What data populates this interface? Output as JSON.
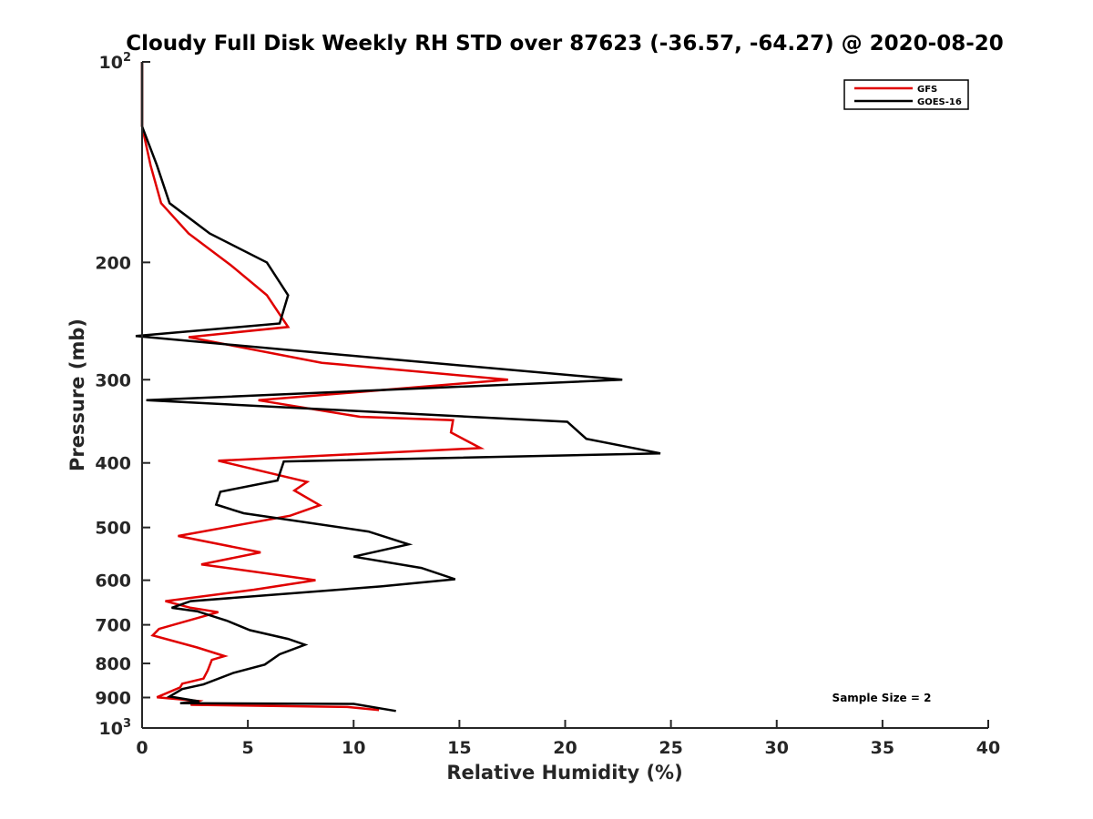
{
  "chart_data": {
    "type": "line",
    "title": "Cloudy Full Disk Weekly RH STD over 87623 (-36.57, -64.27) @ 2020-08-20",
    "xlabel": "Relative Humidity (%)",
    "ylabel": "Pressure (mb)",
    "xlim": [
      0,
      40
    ],
    "ylim": [
      100,
      1000
    ],
    "y_scale": "log",
    "y_reversed": true,
    "x_ticks": [
      "0",
      "5",
      "10",
      "15",
      "20",
      "25",
      "30",
      "35",
      "40"
    ],
    "y_ticks": [
      {
        "value": 100,
        "base": "10",
        "exp": "2"
      },
      {
        "value": 200,
        "label": "200"
      },
      {
        "value": 300,
        "label": "300"
      },
      {
        "value": 400,
        "label": "400"
      },
      {
        "value": 500,
        "label": "500"
      },
      {
        "value": 600,
        "label": "600"
      },
      {
        "value": 700,
        "label": "700"
      },
      {
        "value": 800,
        "label": "800"
      },
      {
        "value": 900,
        "label": "900"
      },
      {
        "value": 1000,
        "base": "10",
        "exp": "3"
      }
    ],
    "grid": false,
    "legend_position": "top-right",
    "series": [
      {
        "name": "GFS",
        "color": "#e00000",
        "points": [
          [
            0.0,
            100
          ],
          [
            0.0,
            125
          ],
          [
            0.4,
            143
          ],
          [
            0.9,
            163
          ],
          [
            2.2,
            181
          ],
          [
            4.2,
            202
          ],
          [
            5.9,
            224
          ],
          [
            6.9,
            250
          ],
          [
            2.2,
            259
          ],
          [
            8.5,
            283
          ],
          [
            17.3,
            300
          ],
          [
            5.5,
            322
          ],
          [
            10.3,
            341
          ],
          [
            14.7,
            345
          ],
          [
            14.6,
            360
          ],
          [
            16.0,
            380
          ],
          [
            3.6,
            397
          ],
          [
            7.8,
            427
          ],
          [
            7.2,
            440
          ],
          [
            8.4,
            463
          ],
          [
            7.0,
            480
          ],
          [
            1.7,
            515
          ],
          [
            5.6,
            545
          ],
          [
            2.8,
            568
          ],
          [
            8.2,
            600
          ],
          [
            5.3,
            620
          ],
          [
            1.1,
            645
          ],
          [
            2.3,
            660
          ],
          [
            3.6,
            670
          ],
          [
            0.8,
            710
          ],
          [
            0.5,
            726
          ],
          [
            2.6,
            757
          ],
          [
            3.9,
            780
          ],
          [
            3.3,
            790
          ],
          [
            3.1,
            820
          ],
          [
            2.9,
            843
          ],
          [
            1.9,
            858
          ],
          [
            1.8,
            869
          ],
          [
            0.7,
            899
          ],
          [
            2.7,
            911
          ],
          [
            2.3,
            923
          ],
          [
            9.7,
            930
          ],
          [
            11.2,
            940
          ]
        ]
      },
      {
        "name": "GOES-16",
        "color": "#000000",
        "points": [
          [
            0.0,
            100
          ],
          [
            0.0,
            125
          ],
          [
            0.7,
            143
          ],
          [
            1.3,
            163
          ],
          [
            3.2,
            181
          ],
          [
            5.9,
            200
          ],
          [
            6.9,
            224
          ],
          [
            6.5,
            247
          ],
          [
            -0.3,
            258
          ],
          [
            12.0,
            280
          ],
          [
            22.7,
            300
          ],
          [
            0.2,
            322
          ],
          [
            20.1,
            347
          ],
          [
            21.0,
            368
          ],
          [
            24.5,
            387
          ],
          [
            6.7,
            398
          ],
          [
            6.4,
            425
          ],
          [
            3.7,
            442
          ],
          [
            3.5,
            462
          ],
          [
            4.8,
            476
          ],
          [
            10.7,
            507
          ],
          [
            12.6,
            530
          ],
          [
            10.0,
            553
          ],
          [
            13.2,
            575
          ],
          [
            14.8,
            598
          ],
          [
            11.3,
            613
          ],
          [
            2.3,
            645
          ],
          [
            1.4,
            660
          ],
          [
            2.6,
            668
          ],
          [
            4.0,
            690
          ],
          [
            5.1,
            713
          ],
          [
            6.9,
            735
          ],
          [
            7.7,
            750
          ],
          [
            6.5,
            775
          ],
          [
            5.8,
            803
          ],
          [
            4.3,
            827
          ],
          [
            2.9,
            860
          ],
          [
            1.9,
            874
          ],
          [
            1.3,
            897
          ],
          [
            2.7,
            912
          ],
          [
            1.8,
            918
          ],
          [
            10.0,
            920
          ],
          [
            12.0,
            943
          ]
        ]
      }
    ],
    "annotations": [
      "Sample Size = 2"
    ]
  }
}
